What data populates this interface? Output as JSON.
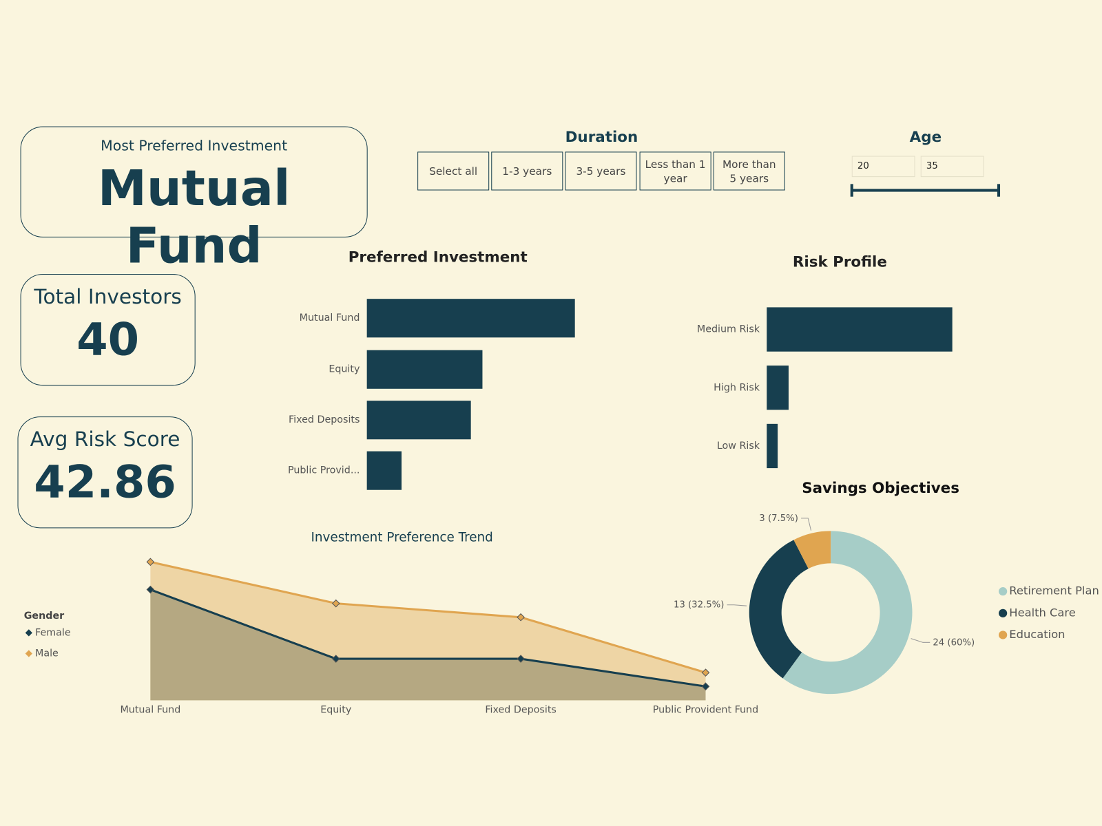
{
  "cards": [
    {
      "title": "Most Preferred Investment",
      "value": "Mutual Fund"
    },
    {
      "title": "Total Investors",
      "value": 40
    },
    {
      "title": "Avg Risk Score",
      "value": 42.86
    }
  ],
  "slicers": {
    "duration": {
      "title": "Duration",
      "options": [
        "Select all",
        "1-3 years",
        "3-5 years",
        "Less than 1 year",
        "More than 5 years"
      ]
    },
    "age": {
      "title": "Age",
      "min": 20,
      "max": 35
    }
  },
  "chart_data": [
    {
      "type": "bar",
      "orientation": "horizontal",
      "title": "Preferred Investment",
      "categories": [
        "Mutual Fund",
        "Equity",
        "Fixed Deposits",
        "Public Provid..."
      ],
      "values": [
        18,
        10,
        9,
        3
      ],
      "color": "#173f4f"
    },
    {
      "type": "bar",
      "orientation": "horizontal",
      "title": "Risk Profile",
      "categories": [
        "Medium Risk",
        "High Risk",
        "Low Risk"
      ],
      "values": [
        34,
        4,
        2
      ],
      "color": "#173f4f"
    },
    {
      "type": "area",
      "title": "Investment Preference Trend",
      "categories": [
        "Mutual Fund",
        "Equity",
        "Fixed Deposits",
        "Public Provident Fund"
      ],
      "legend_title": "Gender",
      "legend": "left",
      "series": [
        {
          "name": "Female",
          "color": "#173f4f",
          "fill": "#b5a882",
          "values": [
            8,
            3,
            3,
            1
          ]
        },
        {
          "name": "Male",
          "color": "#e0a550",
          "fill": "#eed5a5",
          "values": [
            10,
            7,
            6,
            2
          ]
        }
      ]
    },
    {
      "type": "donut",
      "title": "Savings Objectives",
      "legend": "right",
      "categories": [
        "Retirement Plan",
        "Health Care",
        "Education"
      ],
      "values": [
        24,
        13,
        3
      ],
      "value_labels": [
        "24 (60%)",
        "13 (32.5%)",
        "3 (7.5%)"
      ],
      "colors": [
        "#a6cdc7",
        "#173f4f",
        "#e0a550"
      ]
    }
  ]
}
